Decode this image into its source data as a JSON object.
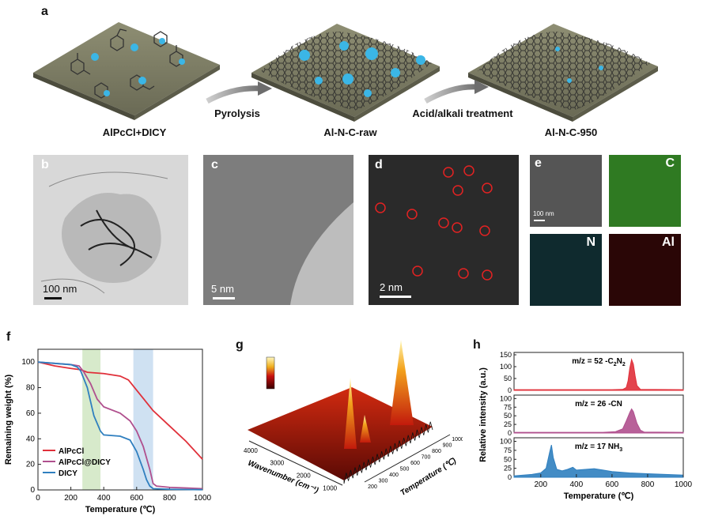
{
  "panel_a": {
    "label": "a",
    "stages": [
      "AlPcCl+DICY",
      "Al-N-C-raw",
      "Al-N-C-950"
    ],
    "arrows": [
      "Pyrolysis",
      "Acid/alkali treatment"
    ]
  },
  "panel_b": {
    "label": "b",
    "scale": "100 nm"
  },
  "panel_c": {
    "label": "c",
    "scale": "5 nm"
  },
  "panel_d": {
    "label": "d",
    "scale": "2 nm"
  },
  "panel_e": {
    "label": "e",
    "scale": "100 nm",
    "maps": [
      "C",
      "N",
      "Al"
    ]
  },
  "panel_f": {
    "label": "f"
  },
  "panel_g": {
    "label": "g"
  },
  "panel_h": {
    "label": "h"
  },
  "colors": {
    "AlPcCl": "#e0303a",
    "AlPcCl@DICY": "#b0508e",
    "DICY": "#2f7fbf",
    "band_green": "#d7eacb",
    "band_blue": "#cfe1f2"
  },
  "chart_data": [
    {
      "type": "line",
      "panel": "f",
      "xlabel": "Temperature (℃)",
      "ylabel": "Remaining weight (%)",
      "xlim": [
        0,
        1000
      ],
      "ylim": [
        0,
        110
      ],
      "xticks": [
        0,
        200,
        400,
        600,
        800,
        1000
      ],
      "yticks": [
        0,
        20,
        40,
        60,
        80,
        100
      ],
      "shaded_ranges": [
        [
          270,
          380
        ],
        [
          580,
          700
        ]
      ],
      "legend_position": "bottom-left",
      "series": [
        {
          "name": "AlPcCl",
          "x": [
            0,
            100,
            200,
            260,
            300,
            400,
            500,
            550,
            600,
            650,
            700,
            800,
            900,
            1000
          ],
          "y": [
            100,
            97,
            95,
            94,
            92,
            91,
            89,
            86,
            78,
            70,
            62,
            50,
            38,
            24
          ]
        },
        {
          "name": "AlPcCl@DICY",
          "x": [
            0,
            100,
            200,
            250,
            280,
            320,
            360,
            400,
            500,
            560,
            600,
            640,
            680,
            700,
            720,
            800,
            900,
            1000
          ],
          "y": [
            100,
            99,
            98,
            97,
            92,
            83,
            71,
            65,
            60,
            54,
            46,
            34,
            16,
            5,
            3,
            2,
            1.5,
            1
          ]
        },
        {
          "name": "DICY",
          "x": [
            0,
            100,
            200,
            240,
            260,
            300,
            340,
            380,
            400,
            500,
            560,
            600,
            640,
            660,
            680,
            700,
            800,
            900,
            1000
          ],
          "y": [
            100,
            99,
            98,
            96,
            93,
            80,
            58,
            46,
            43,
            42,
            39,
            30,
            16,
            8,
            3,
            1,
            0.5,
            0.3,
            0.2
          ]
        }
      ]
    },
    {
      "type": "surface",
      "panel": "g",
      "xlabel": "Wavenumber (cm⁻¹)",
      "ylabel": "Temperature (℃)",
      "xticks": [
        4000,
        3000,
        2000,
        1000
      ],
      "yticks": [
        200,
        300,
        400,
        500,
        600,
        700,
        800,
        900,
        1000
      ]
    },
    {
      "type": "line",
      "panel": "h",
      "xlabel": "Temperature (℃)",
      "ylabel": "Relative intensity (a.u.)",
      "xlim": [
        50,
        1000
      ],
      "xticks": [
        200,
        400,
        600,
        800,
        1000
      ],
      "subplots": [
        {
          "name": "m/z = 52 -C2N2",
          "label_main": "m/z = 52 -C",
          "sub1": "2",
          "mid": "N",
          "sub2": "2",
          "color": "#e0303a",
          "ylim": [
            0,
            160
          ],
          "yticks": [
            0,
            50,
            100,
            150
          ],
          "x": [
            50,
            600,
            660,
            680,
            690,
            700,
            710,
            720,
            730,
            740,
            760,
            1000
          ],
          "y": [
            3,
            3,
            4,
            12,
            40,
            95,
            130,
            110,
            60,
            20,
            4,
            3
          ]
        },
        {
          "name": "m/z = 26 -CN",
          "label_main": "m/z = 26 -CN",
          "sub1": "",
          "mid": "",
          "sub2": "",
          "color": "#b0508e",
          "ylim": [
            0,
            110
          ],
          "yticks": [
            0,
            25,
            50,
            75,
            100
          ],
          "x": [
            50,
            550,
            620,
            660,
            680,
            700,
            710,
            720,
            740,
            760,
            780,
            1000
          ],
          "y": [
            2,
            2,
            4,
            12,
            35,
            60,
            70,
            62,
            28,
            8,
            3,
            2
          ]
        },
        {
          "name": "m/z = 17 NH3",
          "label_main": "m/z = 17 NH",
          "sub1": "3",
          "mid": "",
          "sub2": "",
          "color": "#2f7fbf",
          "ylim": [
            0,
            110
          ],
          "yticks": [
            0,
            25,
            50,
            75,
            100
          ],
          "x": [
            50,
            150,
            200,
            230,
            250,
            260,
            270,
            290,
            320,
            350,
            380,
            400,
            450,
            500,
            550,
            600,
            700,
            800,
            900,
            1000
          ],
          "y": [
            4,
            8,
            12,
            25,
            70,
            90,
            55,
            22,
            18,
            22,
            28,
            20,
            22,
            24,
            20,
            16,
            12,
            10,
            8,
            6
          ]
        }
      ]
    }
  ]
}
